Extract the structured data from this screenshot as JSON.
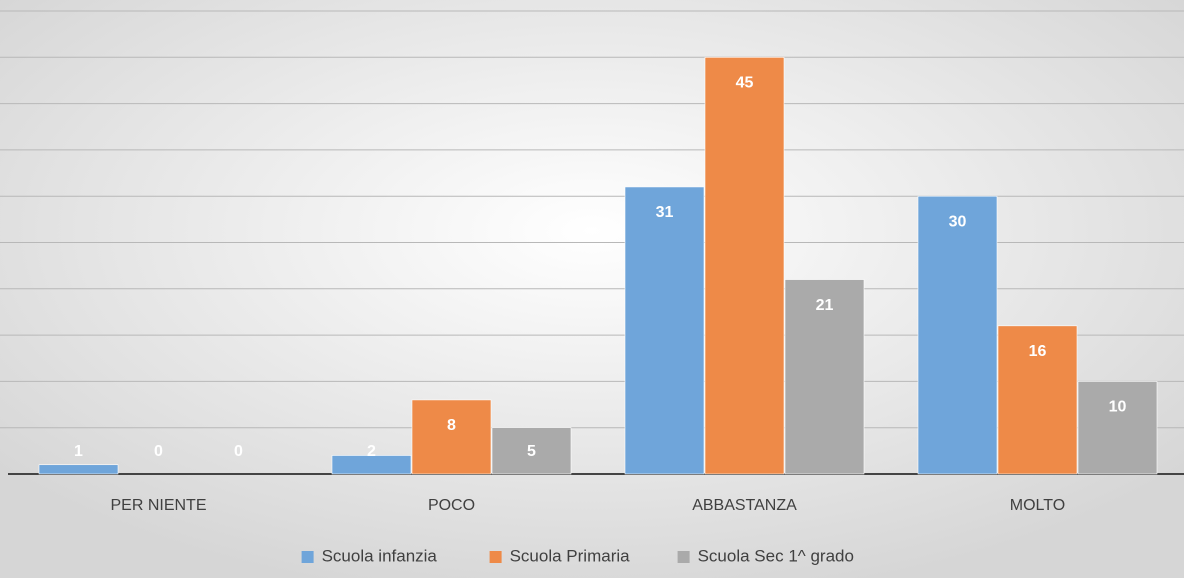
{
  "chart_data": {
    "type": "bar",
    "categories": [
      "PER NIENTE",
      "POCO",
      "ABBASTANZA",
      "MOLTO"
    ],
    "series": [
      {
        "name": "Scuola infanzia",
        "color": "#6fa5da",
        "values": [
          1,
          2,
          31,
          30
        ]
      },
      {
        "name": "Scuola Primaria",
        "color": "#ee8a48",
        "values": [
          0,
          8,
          45,
          16
        ]
      },
      {
        "name": "Scuola Sec 1^ grado",
        "color": "#aaaaaa",
        "values": [
          0,
          5,
          21,
          10
        ]
      }
    ],
    "ylim": [
      0,
      50
    ],
    "yticks": [
      0,
      5,
      10,
      15,
      20,
      25,
      30,
      35,
      40,
      45,
      50
    ],
    "grid": true,
    "legend": "bottom"
  }
}
